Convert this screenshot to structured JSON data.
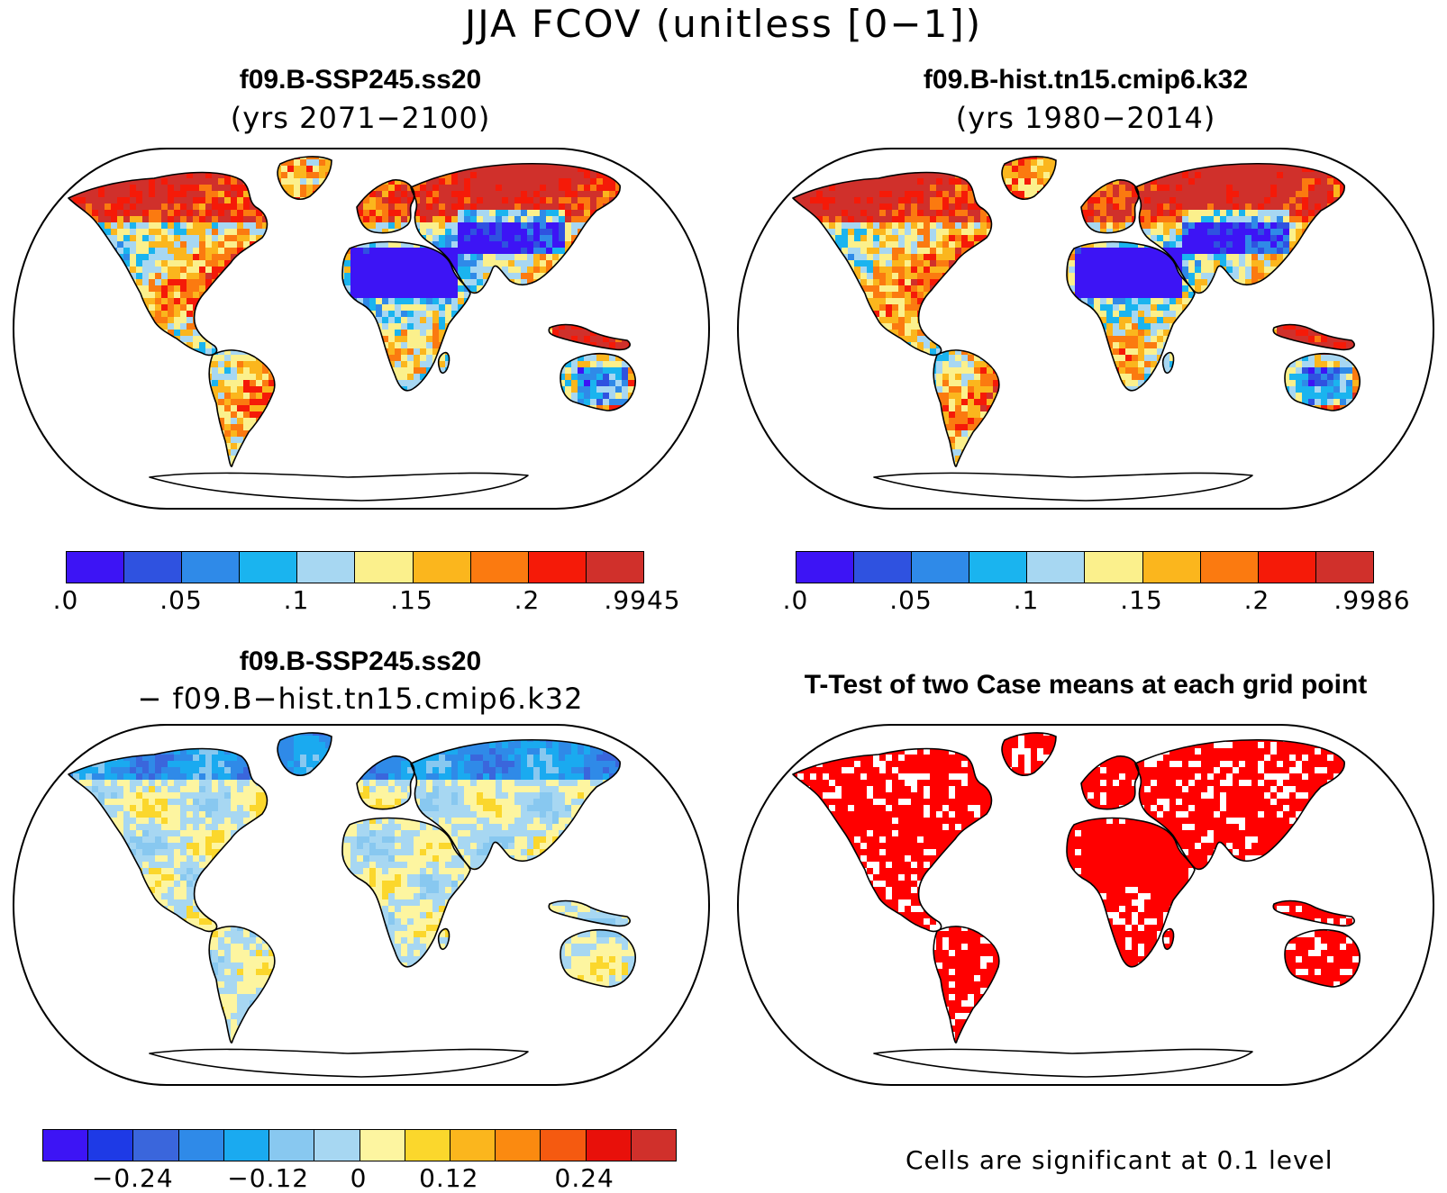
{
  "title": "JJA FCOV (unitless [0−1])",
  "panels": {
    "test_case": {
      "title": "f09.B-SSP245.ss20",
      "subtitle": "(yrs 2071−2100)",
      "colorbar": {
        "colors": [
          "#3d14f5",
          "#2f52e0",
          "#2f8ae8",
          "#1ab4ef",
          "#a7d7f2",
          "#fbf08c",
          "#fbb61d",
          "#fb7a10",
          "#f51a08",
          "#d0302b"
        ],
        "ticks": [
          ".0",
          ".05",
          ".1",
          ".15",
          ".2",
          ".9945"
        ]
      }
    },
    "ref_case": {
      "title": "f09.B-hist.tn15.cmip6.k32",
      "subtitle": "(yrs 1980−2014)",
      "colorbar": {
        "colors": [
          "#3d14f5",
          "#2f52e0",
          "#2f8ae8",
          "#1ab4ef",
          "#a7d7f2",
          "#fbf08c",
          "#fbb61d",
          "#fb7a10",
          "#f51a08",
          "#d0302b"
        ],
        "ticks": [
          ".0",
          ".05",
          ".1",
          ".15",
          ".2",
          ".9986"
        ]
      }
    },
    "difference": {
      "title": "f09.B-SSP245.ss20",
      "subtitle": "− f09.B−hist.tn15.cmip6.k32",
      "colorbar": {
        "colors": [
          "#3d14f5",
          "#1e3ae6",
          "#3a66dc",
          "#2f8ae8",
          "#1aaaf0",
          "#88c8f0",
          "#a7d7f2",
          "#fdf5a0",
          "#fbd72c",
          "#fbb61d",
          "#fb8a10",
          "#f55a10",
          "#e8100a",
          "#d0302b"
        ],
        "ticks": [
          "−0.24",
          "−0.12",
          "0",
          "0.12",
          "0.24"
        ]
      }
    },
    "ttest": {
      "title": "T-Test of two Case means at each grid point",
      "note": "Cells are significant at 0.1 level",
      "color": "#ff0000"
    }
  }
}
